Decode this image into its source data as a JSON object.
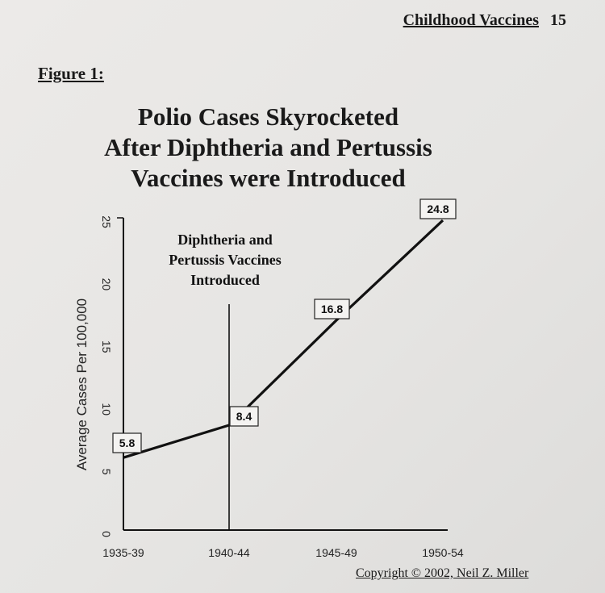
{
  "header": {
    "series_title": "Childhood Vaccines",
    "page_number": "15"
  },
  "figure_label": "Figure 1:",
  "chart_title_lines": [
    "Polio Cases Skyrocketed",
    "After Diphtheria and Pertussis",
    "Vaccines were Introduced"
  ],
  "copyright": "Copyright © 2002, Neil Z. Miller",
  "chart_data": {
    "type": "line",
    "title": "Polio Cases Skyrocketed After Diphtheria and Pertussis Vaccines were Introduced",
    "xlabel": "",
    "ylabel": "Average Cases Per 100,000",
    "categories": [
      "1935-39",
      "1940-44",
      "1945-49",
      "1950-54"
    ],
    "series": [
      {
        "values": [
          5.8,
          8.4,
          16.8,
          24.8
        ]
      }
    ],
    "data_labels": [
      "5.8",
      "8.4",
      "16.8",
      "24.8"
    ],
    "ylim": [
      0,
      25
    ],
    "y_ticks": [
      0,
      5,
      10,
      15,
      20,
      25
    ],
    "grid": false,
    "annotation": {
      "lines": [
        "Diphtheria and",
        "Pertussis Vaccines",
        "Introduced"
      ],
      "at_category": "1940-44"
    }
  }
}
